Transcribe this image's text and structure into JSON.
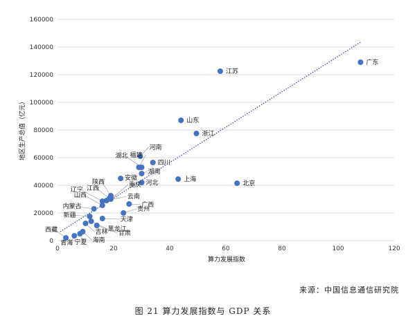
{
  "chart_data": {
    "type": "scatter",
    "xlabel": "算力发展指数",
    "ylabel": "地区生产总值（亿元）",
    "xlim": [
      0,
      120
    ],
    "ylim": [
      0,
      160000
    ],
    "xticks": [
      0,
      20,
      40,
      60,
      80,
      100,
      120
    ],
    "yticks": [
      0,
      20000,
      40000,
      60000,
      80000,
      100000,
      120000,
      140000,
      160000
    ],
    "grid": "horizontal",
    "trendline": {
      "style": "dotted",
      "x": [
        1,
        108
      ],
      "y": [
        6500,
        143500
      ]
    },
    "marker_color": "#4472c4",
    "trend_color": "#2e3f8f",
    "points": [
      {
        "label": "广东",
        "x": 108,
        "y": 129000
      },
      {
        "label": "江苏",
        "x": 58,
        "y": 122500
      },
      {
        "label": "山东",
        "x": 44,
        "y": 87000
      },
      {
        "label": "浙江",
        "x": 49.5,
        "y": 77500
      },
      {
        "label": "河南",
        "x": 29.5,
        "y": 61000
      },
      {
        "label": "福建",
        "x": 29,
        "y": 53000
      },
      {
        "label": "湖北",
        "x": 30,
        "y": 53000
      },
      {
        "label": "四川",
        "x": 34,
        "y": 56500
      },
      {
        "label": "湖南",
        "x": 30,
        "y": 48500
      },
      {
        "label": "北京",
        "x": 64,
        "y": 41500
      },
      {
        "label": "上海",
        "x": 43,
        "y": 44500
      },
      {
        "label": "安徽",
        "x": 22.5,
        "y": 45000
      },
      {
        "label": "河北",
        "x": 30,
        "y": 42000
      },
      {
        "label": "陕西",
        "x": 19,
        "y": 32500
      },
      {
        "label": "重庆",
        "x": 19,
        "y": 30000
      },
      {
        "label": "江西",
        "x": 18.5,
        "y": 30500
      },
      {
        "label": "云南",
        "x": 17.5,
        "y": 29000
      },
      {
        "label": "辽宁",
        "x": 16,
        "y": 28500
      },
      {
        "label": "广西",
        "x": 25.5,
        "y": 26500
      },
      {
        "label": "山西",
        "x": 16,
        "y": 25500
      },
      {
        "label": "内蒙古",
        "x": 13,
        "y": 23000
      },
      {
        "label": "贵州",
        "x": 23.5,
        "y": 20000
      },
      {
        "label": "新疆",
        "x": 11.5,
        "y": 17500
      },
      {
        "label": "天津",
        "x": 16,
        "y": 16000
      },
      {
        "label": "黑龙江",
        "x": 12,
        "y": 14000
      },
      {
        "label": "甘肃",
        "x": 14,
        "y": 11000
      },
      {
        "label": "吉林",
        "x": 10,
        "y": 12500
      },
      {
        "label": "海南",
        "x": 9,
        "y": 6500
      },
      {
        "label": "宁夏",
        "x": 8,
        "y": 5000
      },
      {
        "label": "青海",
        "x": 6,
        "y": 3500
      },
      {
        "label": "西藏",
        "x": 3,
        "y": 2000
      }
    ]
  },
  "source": "来源：中国信息通信研究院",
  "caption": "图 21 算力发展指数与 GDP 关系"
}
